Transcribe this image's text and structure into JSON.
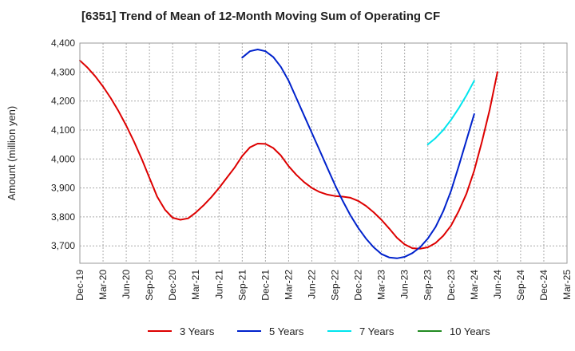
{
  "chart_data": {
    "type": "line",
    "title": "[6351]  Trend of Mean of 12-Month Moving Sum of Operating CF",
    "xlabel": "",
    "ylabel": "Amount (million yen)",
    "ylim": [
      3640,
      4400
    ],
    "yticks": [
      3700,
      3800,
      3900,
      4000,
      4100,
      4200,
      4300,
      4400
    ],
    "ytick_labels": [
      "3,700",
      "3,800",
      "3,900",
      "4,000",
      "4,100",
      "4,200",
      "4,300",
      "4,400"
    ],
    "x_tick_labels": [
      "Dec-19",
      "Mar-20",
      "Jun-20",
      "Sep-20",
      "Dec-20",
      "Mar-21",
      "Jun-21",
      "Sep-21",
      "Dec-21",
      "Mar-22",
      "Jun-22",
      "Sep-22",
      "Dec-22",
      "Mar-23",
      "Jun-23",
      "Sep-23",
      "Dec-23",
      "Mar-24",
      "Jun-24",
      "Sep-24",
      "Dec-24",
      "Mar-25"
    ],
    "grid": true,
    "legend_position": "bottom",
    "series": [
      {
        "name": "3 Years",
        "color": "#dd0000",
        "start_month_index": 0,
        "values": [
          4340,
          4315,
          4285,
          4250,
          4210,
          4165,
          4115,
          4060,
          4000,
          3935,
          3870,
          3825,
          3797,
          3790,
          3795,
          3815,
          3840,
          3868,
          3900,
          3935,
          3970,
          4010,
          4040,
          4053,
          4052,
          4038,
          4012,
          3975,
          3945,
          3920,
          3900,
          3886,
          3877,
          3872,
          3870,
          3866,
          3855,
          3838,
          3816,
          3790,
          3760,
          3728,
          3705,
          3692,
          3690,
          3695,
          3710,
          3735,
          3770,
          3820,
          3880,
          3960,
          4060,
          4170,
          4300
        ]
      },
      {
        "name": "5 Years",
        "color": "#0022cc",
        "start_month_index": 21,
        "values": [
          4350,
          4372,
          4378,
          4372,
          4352,
          4318,
          4270,
          4210,
          4150,
          4090,
          4030,
          3970,
          3910,
          3855,
          3805,
          3762,
          3725,
          3695,
          3672,
          3660,
          3657,
          3662,
          3675,
          3695,
          3725,
          3765,
          3820,
          3890,
          3975,
          4065,
          4155
        ]
      },
      {
        "name": "7 Years",
        "color": "#00e5ee",
        "start_month_index": 45,
        "values": [
          4050,
          4072,
          4100,
          4135,
          4175,
          4220,
          4270
        ]
      },
      {
        "name": "10 Years",
        "color": "#228b22",
        "start_month_index": 0,
        "values": []
      }
    ]
  }
}
